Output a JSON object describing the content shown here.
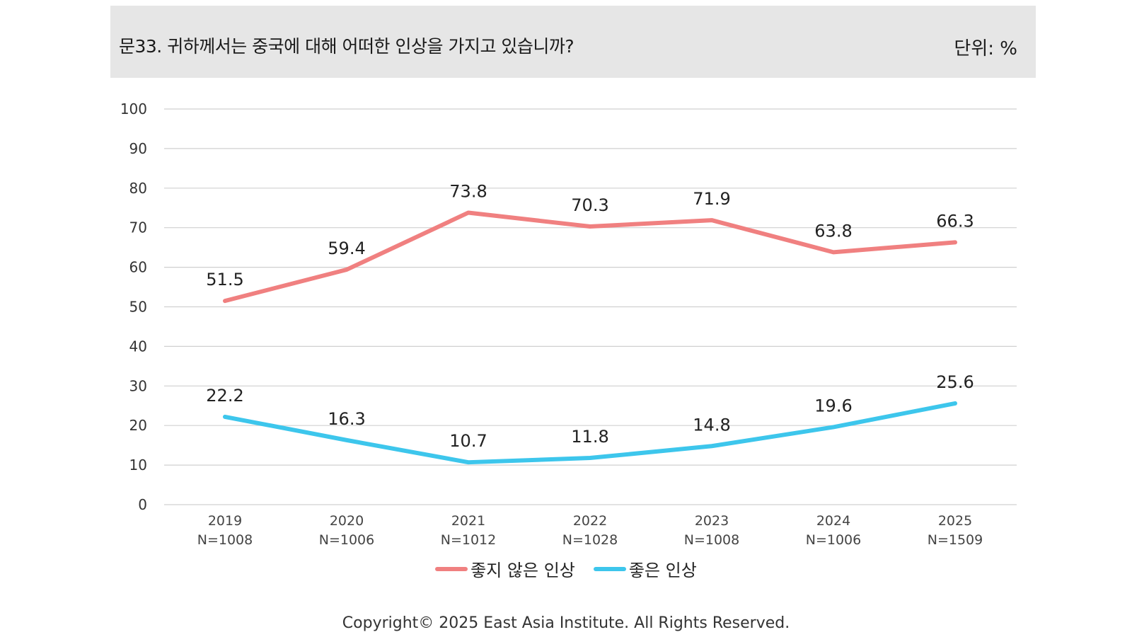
{
  "header": {
    "question": "문33. 귀하께서는 중국에 대해 어떠한 인상을 가지고 있습니까?",
    "unit": "단위: %"
  },
  "chart_data": {
    "type": "line",
    "categories": [
      "2019",
      "2020",
      "2021",
      "2022",
      "2023",
      "2024",
      "2025"
    ],
    "category_sublabels": [
      "N=1008",
      "N=1006",
      "N=1012",
      "N=1028",
      "N=1008",
      "N=1006",
      "N=1509"
    ],
    "ylim": [
      0,
      100
    ],
    "yticks": [
      0,
      10,
      20,
      30,
      40,
      50,
      60,
      70,
      80,
      90,
      100
    ],
    "grid": true,
    "legend_position": "bottom",
    "series": [
      {
        "name": "좋지 않은 인상",
        "color": "#f08080",
        "values": [
          51.5,
          59.4,
          73.8,
          70.3,
          71.9,
          63.8,
          66.3
        ]
      },
      {
        "name": "좋은 인상",
        "color": "#3dc6ec",
        "values": [
          22.2,
          16.3,
          10.7,
          11.8,
          14.8,
          19.6,
          25.6
        ]
      }
    ]
  },
  "footer": {
    "copyright": "Copyright© 2025 East Asia Institute. All Rights Reserved."
  }
}
